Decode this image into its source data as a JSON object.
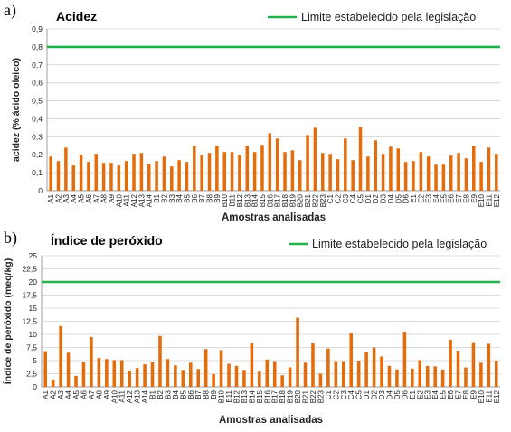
{
  "panels": [
    {
      "letter": "a)"
    },
    {
      "letter": "b)"
    }
  ],
  "chart_data": [
    {
      "type": "bar",
      "title": "Acidez",
      "xlabel": "Amostras analisadas",
      "ylabel": "acidez (% ácido oleico)",
      "ylim": [
        0,
        0.9
      ],
      "yticks": [
        "0",
        "0,1",
        "0,2",
        "0,3",
        "0,4",
        "0,5",
        "0,6",
        "0,7",
        "0,8",
        "0,9"
      ],
      "grid": true,
      "legend": {
        "position": "top-right",
        "entries": [
          "Limite estabelecido pela legislação"
        ]
      },
      "limit_line": {
        "name": "Limite estabelecido pela legislação",
        "value": 0.8,
        "color": "#22B14C"
      },
      "bar_color": "#E46C0A",
      "categories": [
        "A1",
        "A2",
        "A3",
        "A4",
        "A5",
        "A6",
        "A7",
        "A8",
        "A9",
        "A10",
        "A11",
        "A12",
        "A13",
        "A14",
        "B1",
        "B2",
        "B3",
        "B4",
        "B5",
        "B6",
        "B7",
        "B8",
        "B9",
        "B10",
        "B11",
        "B12",
        "B13",
        "B14",
        "B15",
        "B16",
        "B17",
        "B18",
        "B19",
        "B20",
        "B21",
        "B22",
        "B23",
        "C1",
        "C2",
        "C3",
        "C4",
        "C5",
        "D1",
        "D2",
        "D3",
        "D4",
        "D5",
        "D6",
        "E1",
        "E2",
        "E3",
        "E4",
        "E5",
        "E6",
        "E7",
        "E8",
        "E9",
        "E10",
        "E11",
        "E12"
      ],
      "values": [
        0.19,
        0.165,
        0.24,
        0.14,
        0.2,
        0.16,
        0.205,
        0.155,
        0.155,
        0.14,
        0.165,
        0.205,
        0.21,
        0.15,
        0.165,
        0.19,
        0.135,
        0.17,
        0.16,
        0.25,
        0.2,
        0.21,
        0.25,
        0.215,
        0.215,
        0.2,
        0.25,
        0.215,
        0.255,
        0.32,
        0.29,
        0.215,
        0.225,
        0.17,
        0.31,
        0.35,
        0.21,
        0.205,
        0.175,
        0.29,
        0.17,
        0.355,
        0.19,
        0.28,
        0.205,
        0.245,
        0.235,
        0.16,
        0.165,
        0.215,
        0.19,
        0.145,
        0.145,
        0.195,
        0.21,
        0.18,
        0.25,
        0.16,
        0.24,
        0.205
      ]
    },
    {
      "type": "bar",
      "title": "Índice de peróxido",
      "xlabel": "Amostras analisadas",
      "ylabel": "Índice de peróxido  (meq/kg)",
      "ylim": [
        0,
        25
      ],
      "yticks": [
        "0",
        "2,5",
        "5",
        "7,5",
        "10",
        "12,5",
        "15",
        "17,5",
        "20",
        "22,5",
        "25"
      ],
      "grid": true,
      "legend": {
        "position": "top-right",
        "entries": [
          "Limite estabelecido pela legislação"
        ]
      },
      "limit_line": {
        "name": "Limite estabelecido pela legislação",
        "value": 20,
        "color": "#22B14C"
      },
      "bar_color": "#E46C0A",
      "categories": [
        "A1",
        "A2",
        "A3",
        "A4",
        "A5",
        "A6",
        "A7",
        "A8",
        "A9",
        "A10",
        "A11",
        "A12",
        "A13",
        "A14",
        "B1",
        "B2",
        "B3",
        "B4",
        "B5",
        "B6",
        "B7",
        "B8",
        "B9",
        "B10",
        "B11",
        "B12",
        "B13",
        "B14",
        "B15",
        "B16",
        "B17",
        "B18",
        "B19",
        "B20",
        "B21",
        "B22",
        "B23",
        "C1",
        "C2",
        "C3",
        "C4",
        "C5",
        "D1",
        "D2",
        "D3",
        "D4",
        "D5",
        "D6",
        "E1",
        "E2",
        "E3",
        "E4",
        "E5",
        "E6",
        "E7",
        "E8",
        "E9",
        "E10",
        "E11",
        "E12"
      ],
      "values": [
        6.8,
        1.4,
        11.6,
        6.5,
        2.1,
        4.7,
        9.5,
        5.5,
        5.3,
        5.1,
        5.1,
        3.1,
        3.6,
        4.3,
        4.7,
        9.7,
        5.3,
        4.1,
        3.2,
        4.6,
        3.4,
        7.2,
        2.4,
        7.0,
        4.4,
        4.0,
        3.2,
        8.3,
        2.9,
        5.2,
        4.9,
        2.2,
        3.7,
        13.2,
        4.6,
        8.3,
        2.5,
        7.3,
        4.9,
        4.9,
        10.3,
        5.0,
        6.6,
        7.5,
        5.8,
        4.0,
        3.3,
        10.5,
        3.5,
        5.1,
        4.0,
        3.9,
        3.3,
        9.0,
        6.9,
        3.7,
        8.5,
        4.6,
        8.2,
        5.0
      ]
    }
  ]
}
